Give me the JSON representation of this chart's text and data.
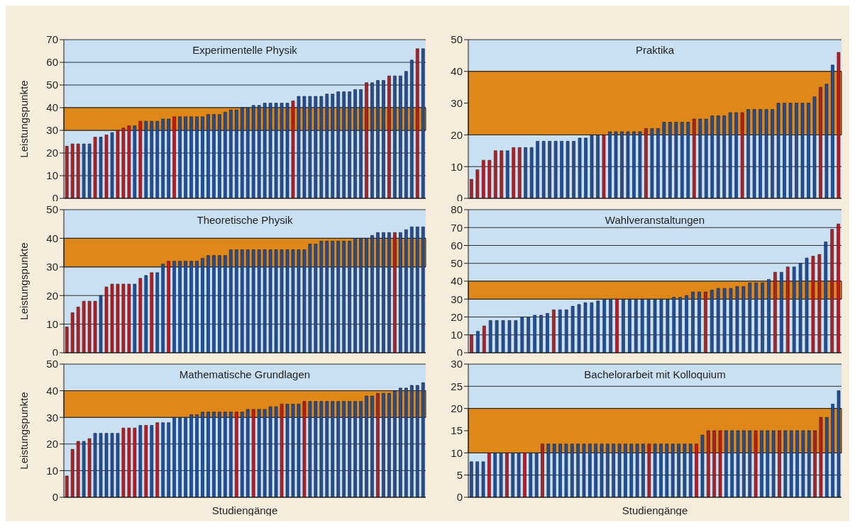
{
  "chart_data": [
    {
      "type": "bar",
      "title": "Experimentelle Physik",
      "ylabel": "Leistungspunkte",
      "tick_labels": "y",
      "grid": "y",
      "ylim": [
        0,
        70
      ],
      "yticks": [
        0,
        10,
        20,
        30,
        40,
        50,
        60,
        70
      ],
      "bands": [
        {
          "axis": "y",
          "from": 30,
          "to": 40,
          "color": "#df8719"
        }
      ],
      "categories": [
        null,
        null,
        null,
        null,
        null,
        null,
        null,
        null,
        null,
        null,
        null,
        null,
        null,
        null,
        null,
        null,
        null,
        null,
        null,
        null,
        null,
        null,
        null,
        null,
        null,
        null,
        null,
        null,
        null,
        null,
        null,
        null,
        null,
        null,
        null,
        null,
        null,
        null,
        null,
        null,
        null,
        null,
        null,
        null,
        null,
        null,
        null,
        null,
        null,
        null,
        null,
        null,
        null,
        null,
        null,
        null,
        null,
        null,
        null,
        null,
        null,
        null,
        null,
        null
      ],
      "values": [
        23,
        24,
        24,
        24,
        24,
        27,
        27,
        28,
        29,
        30,
        31,
        32,
        32,
        34,
        34,
        34,
        34,
        35,
        35,
        36,
        36,
        36,
        36,
        36,
        36,
        37,
        37,
        37,
        38,
        39,
        39,
        40,
        40,
        41,
        41,
        42,
        42,
        42,
        42,
        42,
        43,
        45,
        45,
        45,
        45,
        45,
        46,
        46,
        47,
        47,
        47,
        48,
        48,
        51,
        51,
        52,
        52,
        54,
        54,
        54,
        56,
        61,
        66,
        66
      ],
      "colors": [
        "#c8161e",
        "#c8161e",
        "#c8161e",
        "#1f4f9e",
        "#1f4f9e",
        "#c8161e",
        "#1f4f9e",
        "#c8161e",
        "#1f4f9e",
        "#c8161e",
        "#c8161e",
        "#c8161e",
        "#1f4f9e",
        "#c8161e",
        "#1f4f9e",
        "#1f4f9e",
        "#1f4f9e",
        "#1f4f9e",
        "#1f4f9e",
        "#c8161e",
        "#1f4f9e",
        "#1f4f9e",
        "#1f4f9e",
        "#1f4f9e",
        "#1f4f9e",
        "#1f4f9e",
        "#1f4f9e",
        "#1f4f9e",
        "#1f4f9e",
        "#1f4f9e",
        "#1f4f9e",
        "#1f4f9e",
        "#1f4f9e",
        "#1f4f9e",
        "#1f4f9e",
        "#1f4f9e",
        "#1f4f9e",
        "#1f4f9e",
        "#1f4f9e",
        "#1f4f9e",
        "#c8161e",
        "#1f4f9e",
        "#1f4f9e",
        "#1f4f9e",
        "#1f4f9e",
        "#1f4f9e",
        "#1f4f9e",
        "#1f4f9e",
        "#1f4f9e",
        "#1f4f9e",
        "#1f4f9e",
        "#1f4f9e",
        "#1f4f9e",
        "#c8161e",
        "#1f4f9e",
        "#1f4f9e",
        "#1f4f9e",
        "#c8161e",
        "#1f4f9e",
        "#1f4f9e",
        "#1f4f9e",
        "#1f4f9e",
        "#c8161e",
        "#1f4f9e"
      ]
    },
    {
      "type": "bar",
      "title": "Praktika",
      "tick_labels": "y",
      "grid": "y",
      "ylim": [
        0,
        50
      ],
      "yticks": [
        0,
        10,
        20,
        30,
        40,
        50
      ],
      "bands": [
        {
          "axis": "y",
          "from": 20,
          "to": 40,
          "color": "#df8719"
        }
      ],
      "categories": [
        null,
        null,
        null,
        null,
        null,
        null,
        null,
        null,
        null,
        null,
        null,
        null,
        null,
        null,
        null,
        null,
        null,
        null,
        null,
        null,
        null,
        null,
        null,
        null,
        null,
        null,
        null,
        null,
        null,
        null,
        null,
        null,
        null,
        null,
        null,
        null,
        null,
        null,
        null,
        null,
        null,
        null,
        null,
        null,
        null,
        null,
        null,
        null,
        null,
        null,
        null,
        null,
        null,
        null,
        null,
        null,
        null,
        null,
        null,
        null,
        null,
        null
      ],
      "values": [
        6,
        9,
        12,
        12,
        15,
        15,
        15,
        16,
        16,
        16,
        16,
        18,
        18,
        18,
        18,
        18,
        18,
        18,
        19,
        19,
        20,
        20,
        20,
        21,
        21,
        21,
        21,
        21,
        21,
        22,
        22,
        22,
        24,
        24,
        24,
        24,
        24,
        25,
        25,
        25,
        26,
        26,
        26,
        27,
        27,
        27,
        28,
        28,
        28,
        28,
        28,
        30,
        30,
        30,
        30,
        30,
        30,
        32,
        35,
        36,
        42,
        46
      ],
      "colors": [
        "#c8161e",
        "#c8161e",
        "#c8161e",
        "#c8161e",
        "#c8161e",
        "#c8161e",
        "#1f4f9e",
        "#c8161e",
        "#c8161e",
        "#1f4f9e",
        "#1f4f9e",
        "#1f4f9e",
        "#1f4f9e",
        "#1f4f9e",
        "#1f4f9e",
        "#1f4f9e",
        "#1f4f9e",
        "#1f4f9e",
        "#1f4f9e",
        "#1f4f9e",
        "#1f4f9e",
        "#1f4f9e",
        "#c8161e",
        "#1f4f9e",
        "#1f4f9e",
        "#1f4f9e",
        "#1f4f9e",
        "#1f4f9e",
        "#1f4f9e",
        "#c8161e",
        "#1f4f9e",
        "#1f4f9e",
        "#1f4f9e",
        "#1f4f9e",
        "#1f4f9e",
        "#1f4f9e",
        "#1f4f9e",
        "#c8161e",
        "#1f4f9e",
        "#1f4f9e",
        "#1f4f9e",
        "#1f4f9e",
        "#1f4f9e",
        "#1f4f9e",
        "#1f4f9e",
        "#c8161e",
        "#1f4f9e",
        "#1f4f9e",
        "#1f4f9e",
        "#1f4f9e",
        "#1f4f9e",
        "#1f4f9e",
        "#1f4f9e",
        "#1f4f9e",
        "#1f4f9e",
        "#1f4f9e",
        "#1f4f9e",
        "#1f4f9e",
        "#c8161e",
        "#1f4f9e",
        "#1f4f9e",
        "#c8161e"
      ]
    },
    {
      "type": "bar",
      "title": "Theoretische Physik",
      "ylabel": "Leistungspunkte",
      "tick_labels": "y",
      "grid": "y",
      "ylim": [
        0,
        50
      ],
      "yticks": [
        0,
        10,
        20,
        30,
        40,
        50
      ],
      "bands": [
        {
          "axis": "y",
          "from": 30,
          "to": 40,
          "color": "#df8719"
        }
      ],
      "categories": [
        null,
        null,
        null,
        null,
        null,
        null,
        null,
        null,
        null,
        null,
        null,
        null,
        null,
        null,
        null,
        null,
        null,
        null,
        null,
        null,
        null,
        null,
        null,
        null,
        null,
        null,
        null,
        null,
        null,
        null,
        null,
        null,
        null,
        null,
        null,
        null,
        null,
        null,
        null,
        null,
        null,
        null,
        null,
        null,
        null,
        null,
        null,
        null,
        null,
        null,
        null,
        null,
        null,
        null,
        null,
        null,
        null,
        null,
        null,
        null,
        null,
        null,
        null,
        null
      ],
      "values": [
        9,
        14,
        16,
        18,
        18,
        18,
        20,
        23,
        24,
        24,
        24,
        24,
        24,
        26,
        27,
        28,
        28,
        31,
        32,
        32,
        32,
        32,
        32,
        32,
        33,
        34,
        34,
        34,
        34,
        36,
        36,
        36,
        36,
        36,
        36,
        36,
        36,
        36,
        36,
        36,
        36,
        36,
        36,
        38,
        38,
        39,
        39,
        39,
        39,
        39,
        39,
        40,
        40,
        40,
        41,
        42,
        42,
        42,
        42,
        42,
        43,
        44,
        44,
        44
      ],
      "colors": [
        "#c8161e",
        "#c8161e",
        "#c8161e",
        "#c8161e",
        "#c8161e",
        "#c8161e",
        "#1f4f9e",
        "#c8161e",
        "#c8161e",
        "#c8161e",
        "#c8161e",
        "#c8161e",
        "#1f4f9e",
        "#c8161e",
        "#1f4f9e",
        "#c8161e",
        "#1f4f9e",
        "#1f4f9e",
        "#c8161e",
        "#1f4f9e",
        "#1f4f9e",
        "#1f4f9e",
        "#1f4f9e",
        "#1f4f9e",
        "#1f4f9e",
        "#1f4f9e",
        "#1f4f9e",
        "#1f4f9e",
        "#1f4f9e",
        "#1f4f9e",
        "#1f4f9e",
        "#1f4f9e",
        "#1f4f9e",
        "#1f4f9e",
        "#1f4f9e",
        "#1f4f9e",
        "#1f4f9e",
        "#1f4f9e",
        "#1f4f9e",
        "#1f4f9e",
        "#1f4f9e",
        "#1f4f9e",
        "#1f4f9e",
        "#1f4f9e",
        "#1f4f9e",
        "#1f4f9e",
        "#1f4f9e",
        "#1f4f9e",
        "#1f4f9e",
        "#1f4f9e",
        "#1f4f9e",
        "#1f4f9e",
        "#1f4f9e",
        "#1f4f9e",
        "#1f4f9e",
        "#1f4f9e",
        "#1f4f9e",
        "#1f4f9e",
        "#c8161e",
        "#1f4f9e",
        "#1f4f9e",
        "#1f4f9e",
        "#1f4f9e",
        "#1f4f9e"
      ]
    },
    {
      "type": "bar",
      "title": "Wahlveranstaltungen",
      "tick_labels": "y",
      "grid": "y",
      "ylim": [
        0,
        80
      ],
      "yticks": [
        0,
        10,
        20,
        30,
        40,
        50,
        60,
        70,
        80
      ],
      "bands": [
        {
          "axis": "y",
          "from": 30,
          "to": 40,
          "color": "#df8719"
        }
      ],
      "categories": [
        null,
        null,
        null,
        null,
        null,
        null,
        null,
        null,
        null,
        null,
        null,
        null,
        null,
        null,
        null,
        null,
        null,
        null,
        null,
        null,
        null,
        null,
        null,
        null,
        null,
        null,
        null,
        null,
        null,
        null,
        null,
        null,
        null,
        null,
        null,
        null,
        null,
        null,
        null,
        null,
        null,
        null,
        null,
        null,
        null,
        null,
        null,
        null,
        null,
        null,
        null,
        null,
        null,
        null,
        null,
        null,
        null,
        null,
        null
      ],
      "values": [
        10,
        12,
        15,
        18,
        18,
        18,
        18,
        18,
        20,
        20,
        21,
        21,
        22,
        24,
        24,
        24,
        26,
        27,
        28,
        28,
        29,
        30,
        30,
        30,
        30,
        30,
        30,
        30,
        30,
        30,
        30,
        30,
        31,
        31,
        32,
        34,
        34,
        34,
        35,
        36,
        36,
        36,
        37,
        37,
        39,
        39,
        39,
        41,
        45,
        45,
        48,
        48,
        50,
        53,
        54,
        55,
        62,
        69,
        72
      ],
      "colors": [
        "#c8161e",
        "#1f4f9e",
        "#c8161e",
        "#1f4f9e",
        "#1f4f9e",
        "#1f4f9e",
        "#1f4f9e",
        "#1f4f9e",
        "#1f4f9e",
        "#1f4f9e",
        "#1f4f9e",
        "#1f4f9e",
        "#1f4f9e",
        "#c8161e",
        "#1f4f9e",
        "#1f4f9e",
        "#1f4f9e",
        "#1f4f9e",
        "#1f4f9e",
        "#1f4f9e",
        "#1f4f9e",
        "#1f4f9e",
        "#1f4f9e",
        "#c8161e",
        "#1f4f9e",
        "#1f4f9e",
        "#1f4f9e",
        "#1f4f9e",
        "#1f4f9e",
        "#1f4f9e",
        "#1f4f9e",
        "#1f4f9e",
        "#1f4f9e",
        "#1f4f9e",
        "#1f4f9e",
        "#1f4f9e",
        "#1f4f9e",
        "#c8161e",
        "#1f4f9e",
        "#1f4f9e",
        "#1f4f9e",
        "#1f4f9e",
        "#1f4f9e",
        "#1f4f9e",
        "#1f4f9e",
        "#1f4f9e",
        "#1f4f9e",
        "#1f4f9e",
        "#c8161e",
        "#1f4f9e",
        "#c8161e",
        "#1f4f9e",
        "#1f4f9e",
        "#1f4f9e",
        "#c8161e",
        "#c8161e",
        "#1f4f9e",
        "#c8161e",
        "#c8161e"
      ]
    },
    {
      "type": "bar",
      "title": "Mathematische Grundlagen",
      "ylabel": "Leistungspunkte",
      "xlabel": "Studiengänge",
      "tick_labels": "y",
      "grid": "y",
      "ylim": [
        0,
        50
      ],
      "yticks": [
        0,
        10,
        20,
        30,
        40,
        50
      ],
      "bands": [
        {
          "axis": "y",
          "from": 30,
          "to": 40,
          "color": "#df8719"
        }
      ],
      "categories": [
        null,
        null,
        null,
        null,
        null,
        null,
        null,
        null,
        null,
        null,
        null,
        null,
        null,
        null,
        null,
        null,
        null,
        null,
        null,
        null,
        null,
        null,
        null,
        null,
        null,
        null,
        null,
        null,
        null,
        null,
        null,
        null,
        null,
        null,
        null,
        null,
        null,
        null,
        null,
        null,
        null,
        null,
        null,
        null,
        null,
        null,
        null,
        null,
        null,
        null,
        null,
        null,
        null,
        null,
        null,
        null,
        null,
        null,
        null,
        null,
        null,
        null,
        null,
        null
      ],
      "values": [
        8,
        18,
        21,
        21,
        22,
        24,
        24,
        24,
        24,
        24,
        26,
        26,
        26,
        27,
        27,
        27,
        28,
        28,
        28,
        30,
        30,
        30,
        31,
        31,
        32,
        32,
        32,
        32,
        32,
        32,
        32,
        32,
        33,
        33,
        33,
        33,
        34,
        34,
        35,
        35,
        35,
        35,
        36,
        36,
        36,
        36,
        36,
        36,
        36,
        36,
        36,
        36,
        36,
        38,
        38,
        39,
        39,
        39,
        40,
        41,
        41,
        42,
        42,
        43
      ],
      "colors": [
        "#c8161e",
        "#c8161e",
        "#c8161e",
        "#1f4f9e",
        "#c8161e",
        "#1f4f9e",
        "#1f4f9e",
        "#1f4f9e",
        "#1f4f9e",
        "#1f4f9e",
        "#c8161e",
        "#c8161e",
        "#c8161e",
        "#1f4f9e",
        "#c8161e",
        "#1f4f9e",
        "#c8161e",
        "#1f4f9e",
        "#1f4f9e",
        "#1f4f9e",
        "#1f4f9e",
        "#1f4f9e",
        "#1f4f9e",
        "#1f4f9e",
        "#1f4f9e",
        "#1f4f9e",
        "#1f4f9e",
        "#1f4f9e",
        "#1f4f9e",
        "#1f4f9e",
        "#c8161e",
        "#1f4f9e",
        "#1f4f9e",
        "#c8161e",
        "#1f4f9e",
        "#1f4f9e",
        "#1f4f9e",
        "#1f4f9e",
        "#c8161e",
        "#1f4f9e",
        "#1f4f9e",
        "#1f4f9e",
        "#c8161e",
        "#1f4f9e",
        "#1f4f9e",
        "#1f4f9e",
        "#1f4f9e",
        "#1f4f9e",
        "#1f4f9e",
        "#1f4f9e",
        "#1f4f9e",
        "#1f4f9e",
        "#1f4f9e",
        "#1f4f9e",
        "#1f4f9e",
        "#c8161e",
        "#1f4f9e",
        "#1f4f9e",
        "#1f4f9e",
        "#1f4f9e",
        "#1f4f9e",
        "#1f4f9e",
        "#1f4f9e",
        "#1f4f9e"
      ]
    },
    {
      "type": "bar",
      "title": "Bachelorarbeit mit Kolloquium",
      "xlabel": "Studiengänge",
      "tick_labels": "y",
      "grid": "y",
      "ylim": [
        0,
        30
      ],
      "yticks": [
        0,
        5,
        10,
        15,
        20,
        25,
        30
      ],
      "bands": [
        {
          "axis": "y",
          "from": 10,
          "to": 20,
          "color": "#df8719"
        }
      ],
      "categories": [
        null,
        null,
        null,
        null,
        null,
        null,
        null,
        null,
        null,
        null,
        null,
        null,
        null,
        null,
        null,
        null,
        null,
        null,
        null,
        null,
        null,
        null,
        null,
        null,
        null,
        null,
        null,
        null,
        null,
        null,
        null,
        null,
        null,
        null,
        null,
        null,
        null,
        null,
        null,
        null,
        null,
        null,
        null,
        null,
        null,
        null,
        null,
        null,
        null,
        null,
        null,
        null,
        null,
        null,
        null,
        null,
        null,
        null,
        null,
        null,
        null,
        null,
        null
      ],
      "values": [
        8,
        8,
        8,
        10,
        10,
        10,
        10,
        10,
        10,
        10,
        10,
        10,
        12,
        12,
        12,
        12,
        12,
        12,
        12,
        12,
        12,
        12,
        12,
        12,
        12,
        12,
        12,
        12,
        12,
        12,
        12,
        12,
        12,
        12,
        12,
        12,
        12,
        12,
        12,
        14,
        15,
        15,
        15,
        15,
        15,
        15,
        15,
        15,
        15,
        15,
        15,
        15,
        15,
        15,
        15,
        15,
        15,
        15,
        15,
        18,
        18,
        21,
        24
      ],
      "colors": [
        "#1f4f9e",
        "#1f4f9e",
        "#1f4f9e",
        "#c8161e",
        "#1f4f9e",
        "#1f4f9e",
        "#c8161e",
        "#1f4f9e",
        "#1f4f9e",
        "#c8161e",
        "#1f4f9e",
        "#1f4f9e",
        "#c8161e",
        "#1f4f9e",
        "#1f4f9e",
        "#1f4f9e",
        "#1f4f9e",
        "#1f4f9e",
        "#1f4f9e",
        "#1f4f9e",
        "#1f4f9e",
        "#1f4f9e",
        "#1f4f9e",
        "#1f4f9e",
        "#1f4f9e",
        "#1f4f9e",
        "#1f4f9e",
        "#1f4f9e",
        "#1f4f9e",
        "#1f4f9e",
        "#c8161e",
        "#1f4f9e",
        "#1f4f9e",
        "#1f4f9e",
        "#1f4f9e",
        "#1f4f9e",
        "#1f4f9e",
        "#1f4f9e",
        "#c8161e",
        "#1f4f9e",
        "#c8161e",
        "#c8161e",
        "#c8161e",
        "#1f4f9e",
        "#1f4f9e",
        "#1f4f9e",
        "#1f4f9e",
        "#1f4f9e",
        "#c8161e",
        "#1f4f9e",
        "#1f4f9e",
        "#1f4f9e",
        "#c8161e",
        "#1f4f9e",
        "#1f4f9e",
        "#1f4f9e",
        "#1f4f9e",
        "#1f4f9e",
        "#c8161e",
        "#c8161e",
        "#1f4f9e",
        "#1f4f9e",
        "#1f4f9e"
      ]
    }
  ]
}
